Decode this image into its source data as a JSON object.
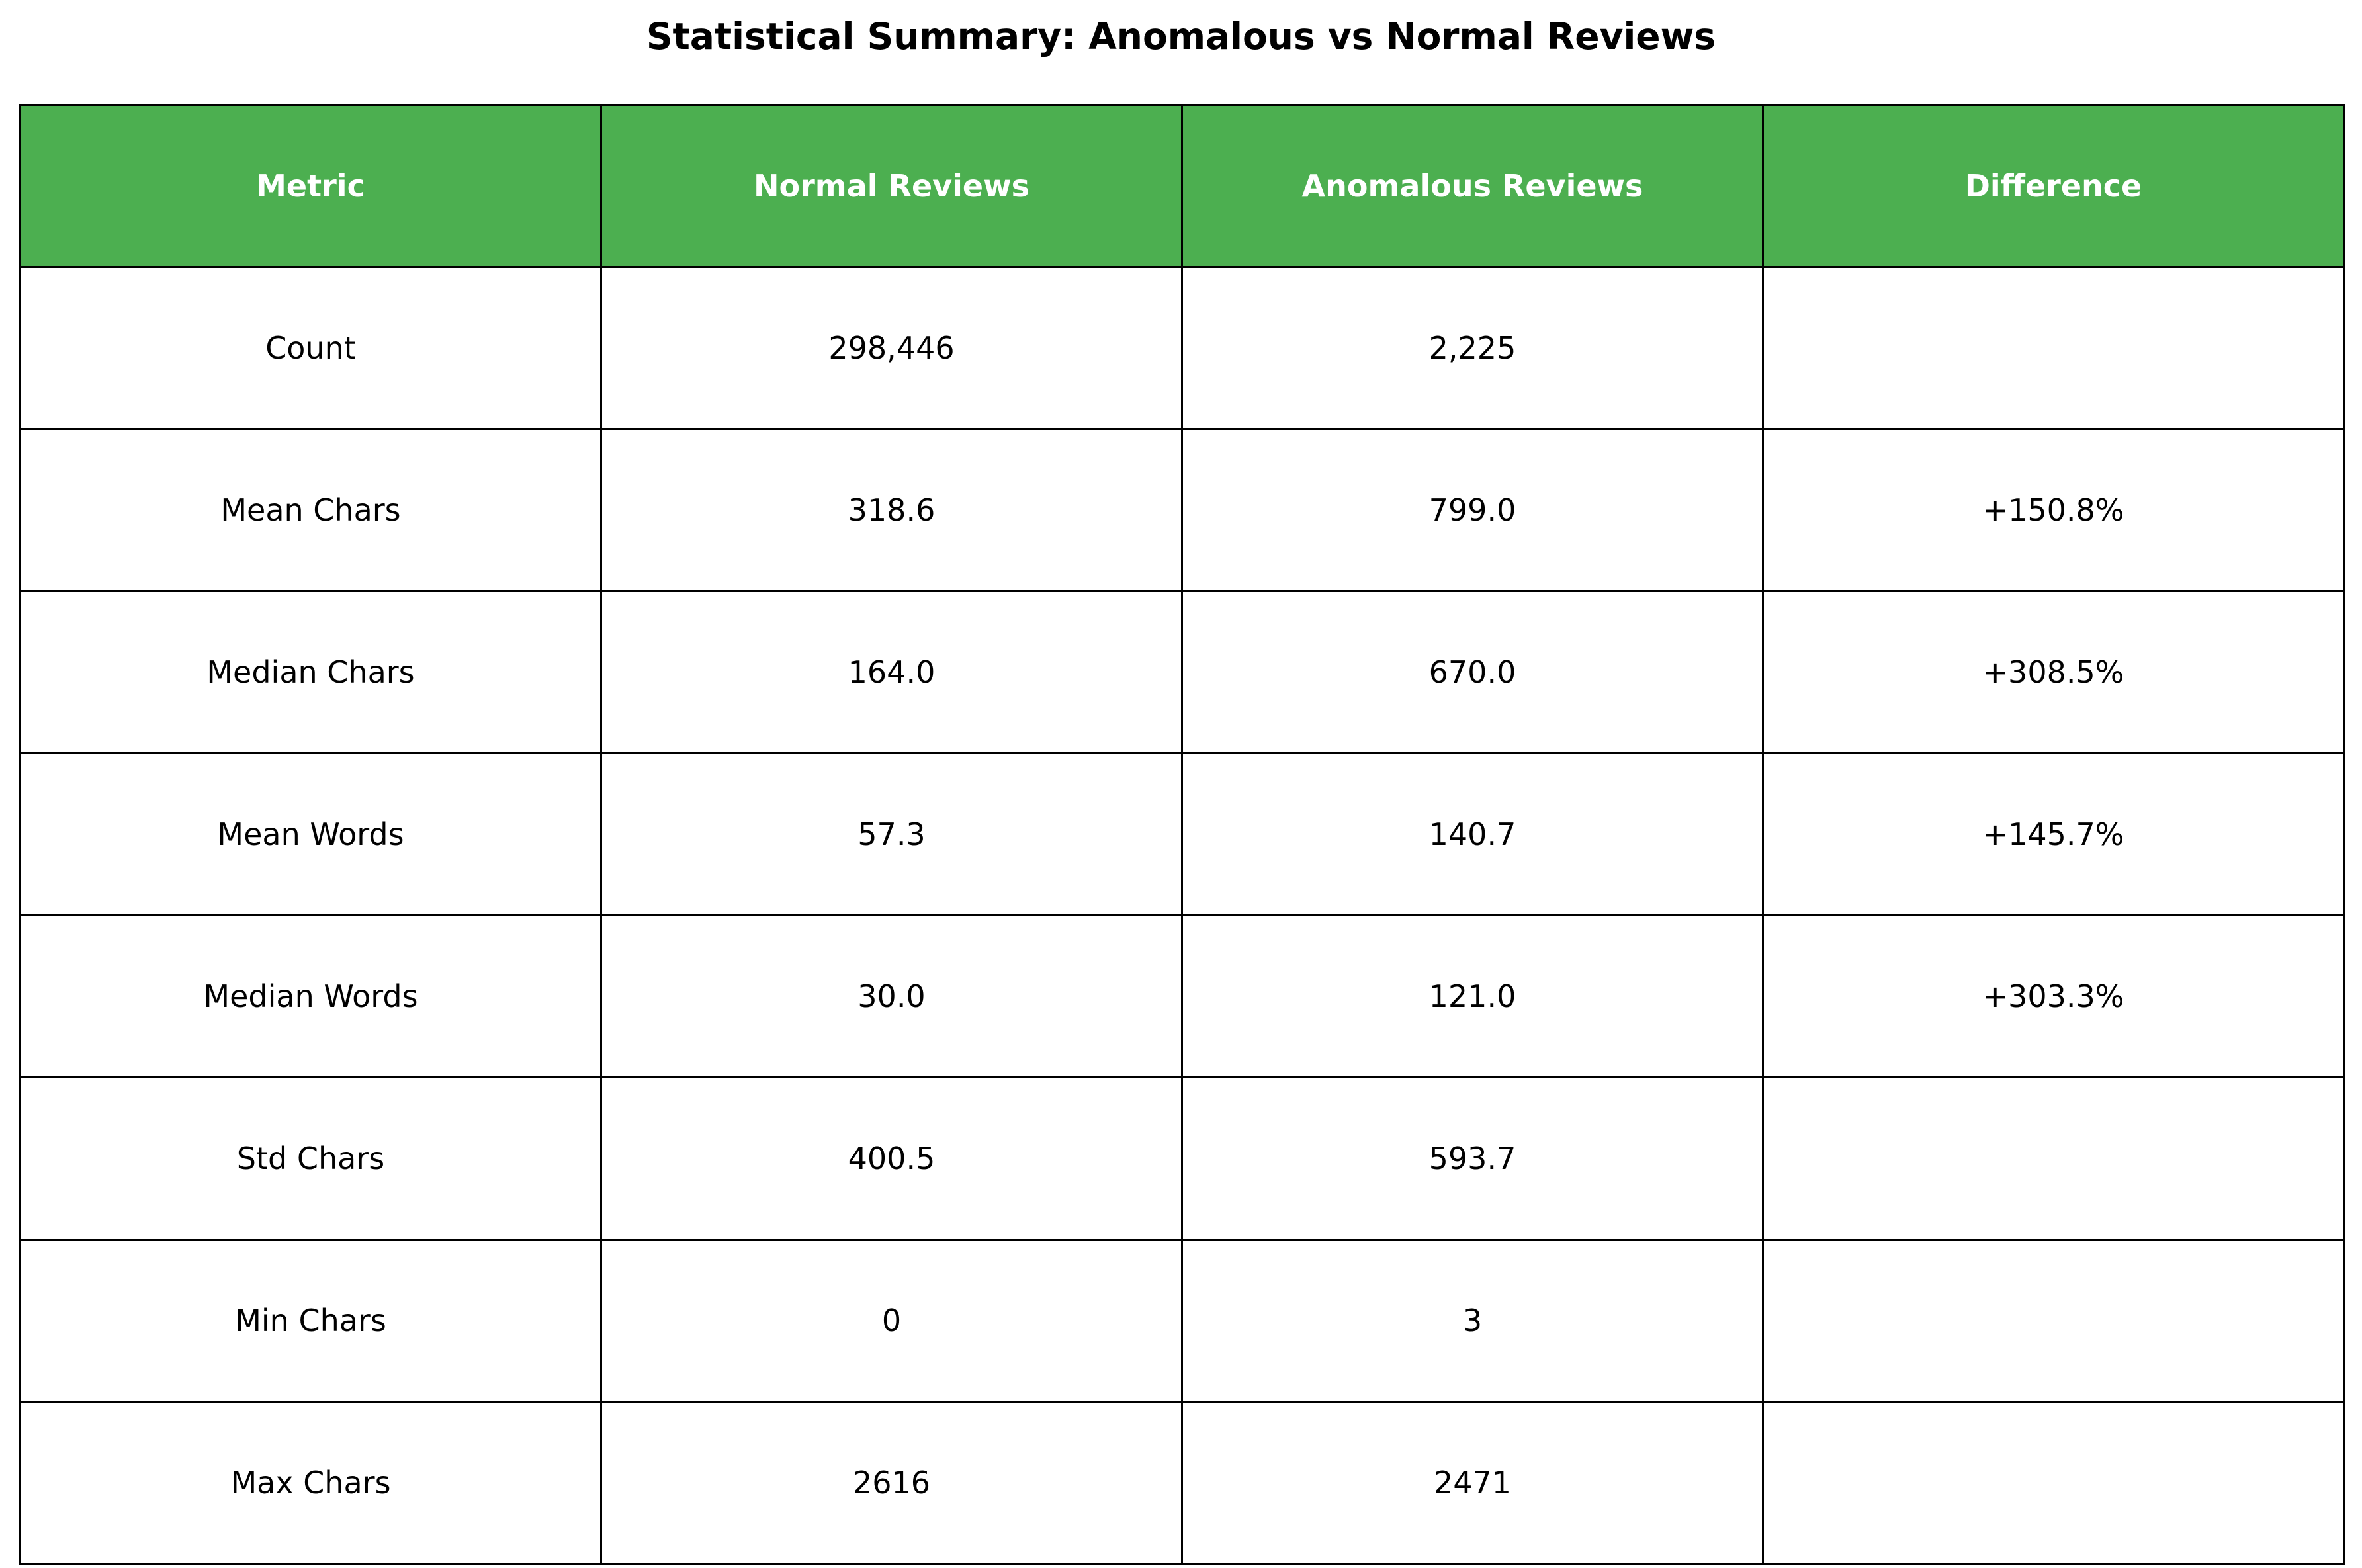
{
  "chart_data": {
    "type": "table",
    "title": "Statistical Summary: Anomalous vs Normal Reviews",
    "header_color": "#4caf50",
    "columns": [
      "Metric",
      "Normal Reviews",
      "Anomalous Reviews",
      "Difference"
    ],
    "rows": [
      [
        "Count",
        "298,446",
        "2,225",
        ""
      ],
      [
        "Mean Chars",
        "318.6",
        "799.0",
        "+150.8%"
      ],
      [
        "Median Chars",
        "164.0",
        "670.0",
        "+308.5%"
      ],
      [
        "Mean Words",
        "57.3",
        "140.7",
        "+145.7%"
      ],
      [
        "Median Words",
        "30.0",
        "121.0",
        "+303.3%"
      ],
      [
        "Std Chars",
        "400.5",
        "593.7",
        ""
      ],
      [
        "Min Chars",
        "0",
        "3",
        ""
      ],
      [
        "Max Chars",
        "2616",
        "2471",
        ""
      ]
    ]
  }
}
